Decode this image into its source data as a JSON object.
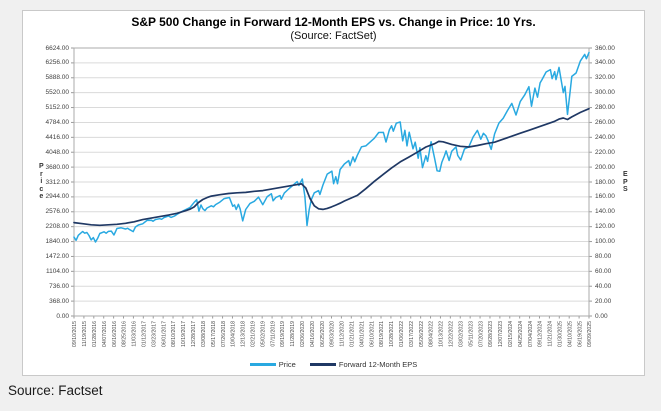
{
  "page": {
    "source_footer": "Source: Factset"
  },
  "chart_data": {
    "type": "line",
    "title": "S&P 500 Change in Forward 12-Month EPS vs. Change in Price: 10 Yrs.",
    "subtitle": "(Source: FactSet)",
    "grid": true,
    "legend_position": "bottom",
    "x_range_months": [
      0,
      120
    ],
    "left_axis": {
      "label": "Price",
      "min": 0,
      "max": 6624,
      "step": 368,
      "ticks_count": 19
    },
    "right_axis": {
      "label": "EPS",
      "min": 0,
      "max": 360,
      "step": 20,
      "ticks_count": 19
    },
    "colors": {
      "price_line": "#29A9E1",
      "eps_line": "#1F3864",
      "gridline": "#dadada",
      "plot_border": "#ababab"
    },
    "legend": [
      {
        "label": "Price",
        "color": "#29A9E1"
      },
      {
        "label": "Forward 12-Month EPS",
        "color": "#1F3864"
      }
    ],
    "x_tick_labels": [
      "09/10/2015",
      "11/19/2015",
      "01/28/2016",
      "04/07/2016",
      "06/16/2016",
      "08/25/2016",
      "11/03/2016",
      "01/12/2017",
      "03/23/2017",
      "06/01/2017",
      "08/10/2017",
      "10/19/2017",
      "12/28/2017",
      "03/08/2018",
      "05/17/2018",
      "07/26/2018",
      "10/04/2018",
      "12/13/2018",
      "02/21/2019",
      "05/02/2019",
      "07/11/2019",
      "09/19/2019",
      "11/28/2019",
      "02/06/2020",
      "04/16/2020",
      "06/25/2020",
      "09/03/2020",
      "11/12/2020",
      "01/21/2021",
      "04/01/2021",
      "06/10/2021",
      "08/19/2021",
      "10/28/2021",
      "01/06/2022",
      "03/17/2022",
      "05/26/2022",
      "08/04/2022",
      "10/13/2022",
      "12/22/2022",
      "03/02/2023",
      "05/11/2023",
      "07/20/2023",
      "09/28/2023",
      "12/07/2023",
      "02/15/2024",
      "04/25/2024",
      "07/04/2024",
      "09/12/2024",
      "11/21/2024",
      "01/30/2025",
      "04/10/2025",
      "06/19/2025",
      "09/09/2025"
    ],
    "series": [
      {
        "name": "Price",
        "axis": "left",
        "color": "#29A9E1",
        "points": [
          [
            0,
            1950
          ],
          [
            0.5,
            1872
          ],
          [
            1,
            1995
          ],
          [
            2,
            2089
          ],
          [
            2.5,
            2046
          ],
          [
            3,
            2063
          ],
          [
            3.5,
            1990
          ],
          [
            4,
            1880
          ],
          [
            4.5,
            1939
          ],
          [
            5,
            1829
          ],
          [
            5.5,
            1917
          ],
          [
            6,
            2040
          ],
          [
            7,
            2081
          ],
          [
            7.5,
            2047
          ],
          [
            8,
            2090
          ],
          [
            8.7,
            2099
          ],
          [
            9.3,
            2001
          ],
          [
            9.7,
            2088
          ],
          [
            10,
            2163
          ],
          [
            11,
            2180
          ],
          [
            12,
            2151
          ],
          [
            12.5,
            2168
          ],
          [
            13,
            2133
          ],
          [
            13.8,
            2085
          ],
          [
            14.3,
            2200
          ],
          [
            15,
            2249
          ],
          [
            16,
            2280
          ],
          [
            17,
            2363
          ],
          [
            18,
            2368
          ],
          [
            18.4,
            2344
          ],
          [
            19,
            2384
          ],
          [
            20,
            2405
          ],
          [
            20.4,
            2389
          ],
          [
            21,
            2434
          ],
          [
            22,
            2472
          ],
          [
            22.6,
            2438
          ],
          [
            23.4,
            2468
          ],
          [
            24,
            2510
          ],
          [
            25,
            2575
          ],
          [
            26,
            2627
          ],
          [
            27,
            2680
          ],
          [
            28,
            2810
          ],
          [
            28.6,
            2872
          ],
          [
            29.1,
            2592
          ],
          [
            29.6,
            2744
          ],
          [
            30,
            2652
          ],
          [
            30.5,
            2605
          ],
          [
            31,
            2670
          ],
          [
            32,
            2724
          ],
          [
            32.5,
            2698
          ],
          [
            33,
            2754
          ],
          [
            34,
            2816
          ],
          [
            35,
            2901
          ],
          [
            36.2,
            2930
          ],
          [
            37,
            2712
          ],
          [
            37.4,
            2745
          ],
          [
            37.8,
            2633
          ],
          [
            38.3,
            2760
          ],
          [
            38.7,
            2649
          ],
          [
            39.3,
            2351
          ],
          [
            40,
            2632
          ],
          [
            41,
            2784
          ],
          [
            42,
            2834
          ],
          [
            43,
            2939
          ],
          [
            44,
            2752
          ],
          [
            45,
            2945
          ],
          [
            46,
            3020
          ],
          [
            46.4,
            2847
          ],
          [
            47,
            2926
          ],
          [
            48,
            2978
          ],
          [
            48.3,
            2888
          ],
          [
            49,
            3037
          ],
          [
            50,
            3140
          ],
          [
            51,
            3230
          ],
          [
            52,
            3321
          ],
          [
            52.4,
            3226
          ],
          [
            53.2,
            3386
          ],
          [
            53.8,
            2954
          ],
          [
            54.3,
            2237
          ],
          [
            54.8,
            2630
          ],
          [
            55.3,
            2874
          ],
          [
            56,
            3044
          ],
          [
            57,
            3100
          ],
          [
            57.3,
            3002
          ],
          [
            58,
            3235
          ],
          [
            59,
            3508
          ],
          [
            60.1,
            3580
          ],
          [
            60.5,
            3269
          ],
          [
            61,
            3443
          ],
          [
            61.4,
            3270
          ],
          [
            62,
            3622
          ],
          [
            63,
            3756
          ],
          [
            64,
            3841
          ],
          [
            64.3,
            3714
          ],
          [
            65,
            3932
          ],
          [
            65.4,
            3811
          ],
          [
            66,
            3972
          ],
          [
            67,
            4181
          ],
          [
            68,
            4204
          ],
          [
            69,
            4298
          ],
          [
            70,
            4395
          ],
          [
            71,
            4536
          ],
          [
            72.1,
            4537
          ],
          [
            72.7,
            4300
          ],
          [
            73.5,
            4605
          ],
          [
            74,
            4701
          ],
          [
            74.4,
            4567
          ],
          [
            75.1,
            4766
          ],
          [
            76,
            4796
          ],
          [
            76.6,
            4327
          ],
          [
            77.1,
            4589
          ],
          [
            77.6,
            4204
          ],
          [
            78.1,
            4543
          ],
          [
            79,
            4132
          ],
          [
            79.5,
            4296
          ],
          [
            80.2,
            3901
          ],
          [
            80.6,
            4158
          ],
          [
            81.2,
            3667
          ],
          [
            82,
            3961
          ],
          [
            82.4,
            3821
          ],
          [
            83.2,
            4305
          ],
          [
            84,
            3908
          ],
          [
            84.6,
            3588
          ],
          [
            85.2,
            3577
          ],
          [
            85.7,
            3797
          ],
          [
            86.3,
            3957
          ],
          [
            86.7,
            4080
          ],
          [
            87.4,
            3844
          ],
          [
            88,
            4071
          ],
          [
            89,
            4180
          ],
          [
            89.4,
            3970
          ],
          [
            90.1,
            3856
          ],
          [
            91,
            4129
          ],
          [
            92,
            4179
          ],
          [
            93,
            4425
          ],
          [
            94,
            4588
          ],
          [
            94.8,
            4370
          ],
          [
            95.4,
            4515
          ],
          [
            96,
            4451
          ],
          [
            96.5,
            4330
          ],
          [
            97.2,
            4117
          ],
          [
            98,
            4502
          ],
          [
            99,
            4769
          ],
          [
            100,
            4890
          ],
          [
            101,
            5079
          ],
          [
            102,
            5254
          ],
          [
            103,
            4967
          ],
          [
            104,
            5304
          ],
          [
            105,
            5460
          ],
          [
            106,
            5667
          ],
          [
            106.6,
            5186
          ],
          [
            107.4,
            5634
          ],
          [
            108,
            5408
          ],
          [
            108.6,
            5762
          ],
          [
            109,
            5832
          ],
          [
            110,
            6032
          ],
          [
            111,
            6090
          ],
          [
            111.4,
            5868
          ],
          [
            112,
            6040
          ],
          [
            112.3,
            5842
          ],
          [
            113,
            6144
          ],
          [
            114,
            5521
          ],
          [
            114.4,
            5675
          ],
          [
            115,
            4982
          ],
          [
            115.5,
            5456
          ],
          [
            116,
            5921
          ],
          [
            117,
            6005
          ],
          [
            118,
            6305
          ],
          [
            119,
            6466
          ],
          [
            119.4,
            6359
          ],
          [
            120,
            6512
          ]
        ]
      },
      {
        "name": "Forward 12-Month EPS",
        "axis": "right",
        "color": "#1F3864",
        "points": [
          [
            0,
            125.5
          ],
          [
            2,
            124
          ],
          [
            4,
            122.5
          ],
          [
            6,
            121.8
          ],
          [
            8,
            122.5
          ],
          [
            10,
            123.2
          ],
          [
            12,
            124.5
          ],
          [
            14,
            126.5
          ],
          [
            16,
            129.5
          ],
          [
            18,
            131.5
          ],
          [
            20,
            133.5
          ],
          [
            22,
            135.5
          ],
          [
            24,
            138
          ],
          [
            26,
            141.5
          ],
          [
            27,
            143.5
          ],
          [
            28,
            146.5
          ],
          [
            29,
            152.5
          ],
          [
            30,
            156.5
          ],
          [
            31,
            159
          ],
          [
            32,
            161
          ],
          [
            34,
            163
          ],
          [
            36,
            164.5
          ],
          [
            38,
            165.5
          ],
          [
            40,
            166
          ],
          [
            42,
            167.5
          ],
          [
            44,
            168.5
          ],
          [
            46,
            170.5
          ],
          [
            48,
            172.5
          ],
          [
            50,
            174.5
          ],
          [
            52,
            176.5
          ],
          [
            53,
            177.5
          ],
          [
            54,
            172
          ],
          [
            55,
            158
          ],
          [
            56,
            148
          ],
          [
            57,
            144
          ],
          [
            58,
            143.2
          ],
          [
            59,
            144.5
          ],
          [
            60,
            146.5
          ],
          [
            61,
            149
          ],
          [
            62,
            151.5
          ],
          [
            63,
            154.5
          ],
          [
            64,
            157
          ],
          [
            66,
            162
          ],
          [
            68,
            171
          ],
          [
            70,
            181
          ],
          [
            72,
            190
          ],
          [
            74,
            199
          ],
          [
            76,
            207
          ],
          [
            78,
            213.5
          ],
          [
            80,
            220
          ],
          [
            82,
            227
          ],
          [
            84,
            231.5
          ],
          [
            85,
            234.5
          ],
          [
            86,
            234
          ],
          [
            88,
            230.5
          ],
          [
            90,
            228
          ],
          [
            92,
            227
          ],
          [
            94,
            229
          ],
          [
            96,
            231.5
          ],
          [
            98,
            233.5
          ],
          [
            100,
            237.5
          ],
          [
            102,
            241.5
          ],
          [
            104,
            245.5
          ],
          [
            106,
            249.5
          ],
          [
            108,
            253.5
          ],
          [
            110,
            257.5
          ],
          [
            112,
            261.5
          ],
          [
            113,
            264.5
          ],
          [
            114,
            266
          ],
          [
            115,
            264
          ],
          [
            116,
            267.5
          ],
          [
            118,
            273.5
          ],
          [
            120,
            278.5
          ]
        ]
      }
    ]
  }
}
